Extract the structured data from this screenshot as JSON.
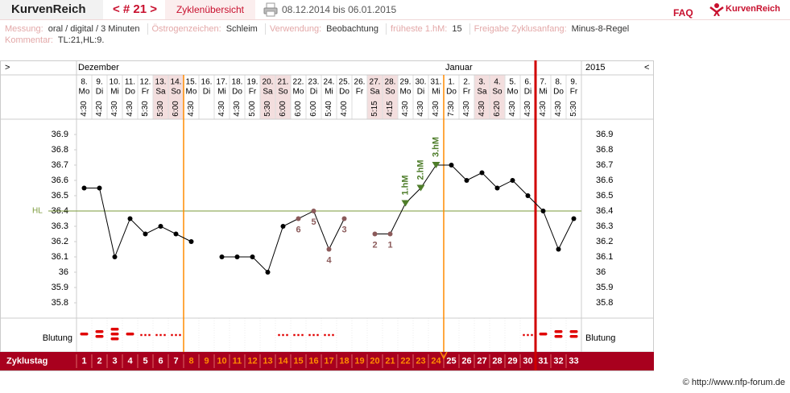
{
  "header": {
    "brand": "KurvenReich",
    "cycle_nav": "< # 21 >",
    "overview": "Zyklenübersicht",
    "date_range": "08.12.2014 bis 06.01.2015",
    "faq": "FAQ",
    "logo": "KurvenReich"
  },
  "info": {
    "fields": [
      {
        "label": "Messung:",
        "value": "oral / digital / 3 Minuten"
      },
      {
        "label": "Östrogenzeichen:",
        "value": "Schleim"
      },
      {
        "label": "Verwendung:",
        "value": "Beobachtung"
      },
      {
        "label": "früheste 1.hM:",
        "value": "15"
      },
      {
        "label": "Freigabe Zyklusanfang:",
        "value": "Minus-8-Regel"
      }
    ],
    "comment": {
      "label": "Kommentar:",
      "value": "TL:21,HL:9."
    }
  },
  "chart_data": {
    "type": "line",
    "nav_prev": ">",
    "nav_next": "<",
    "months": [
      {
        "label": "Dezember",
        "day": 1
      },
      {
        "label": "Januar",
        "day": 25
      }
    ],
    "year_label": "2015",
    "days": [
      "8.",
      "9.",
      "10.",
      "11.",
      "12.",
      "13.",
      "14.",
      "15.",
      "16.",
      "17.",
      "18.",
      "19.",
      "20.",
      "21.",
      "22.",
      "23.",
      "24.",
      "25.",
      "26.",
      "27.",
      "28.",
      "29.",
      "30.",
      "31.",
      "1.",
      "2.",
      "3.",
      "4.",
      "5.",
      "6.",
      "7.",
      "8.",
      "9."
    ],
    "weekdays": [
      "Mo",
      "Di",
      "Mi",
      "Do",
      "Fr",
      "Sa",
      "So",
      "Mo",
      "Di",
      "Mi",
      "Do",
      "Fr",
      "Sa",
      "So",
      "Mo",
      "Di",
      "Mi",
      "Do",
      "Fr",
      "Sa",
      "So",
      "Mo",
      "Di",
      "Mi",
      "Do",
      "Fr",
      "Sa",
      "So",
      "Mo",
      "Di",
      "Mi",
      "Do",
      "Fr"
    ],
    "times": [
      "4:30",
      "4:20",
      "4:30",
      "4:30",
      "5:30",
      "5:30",
      "6:00",
      "4:30",
      null,
      "4:30",
      "4:30",
      "5:00",
      "5:30",
      "6:00",
      "6:00",
      "6:00",
      "5:40",
      "4:00",
      null,
      "5:15",
      "4:15",
      "4:30",
      "4:30",
      "4:30",
      "7:30",
      "4:30",
      "4:30",
      "6:20",
      "4:30",
      "4:30",
      "4:30",
      "4:30",
      "5:30"
    ],
    "values": [
      36.55,
      36.55,
      36.1,
      36.35,
      36.25,
      36.3,
      36.25,
      36.2,
      null,
      36.1,
      36.1,
      36.1,
      36.0,
      36.3,
      36.35,
      36.4,
      36.15,
      36.35,
      null,
      36.25,
      36.25,
      36.45,
      36.55,
      36.7,
      36.7,
      36.6,
      36.65,
      36.55,
      36.6,
      36.5,
      36.4,
      36.15,
      36.35
    ],
    "color": "#000000",
    "count_labels": [
      null,
      null,
      null,
      null,
      null,
      null,
      null,
      null,
      null,
      null,
      null,
      null,
      null,
      null,
      "6",
      "5",
      "4",
      "3",
      null,
      "2",
      "1",
      null,
      null,
      null,
      null,
      null,
      null,
      null,
      null,
      null,
      null,
      null,
      null
    ],
    "excluded_color": "#8b5a5a",
    "hm_labels": [
      null,
      null,
      null,
      null,
      null,
      null,
      null,
      null,
      null,
      null,
      null,
      null,
      null,
      null,
      null,
      null,
      null,
      null,
      null,
      null,
      null,
      "1.hM",
      "2.hM",
      "3.hM",
      null,
      null,
      null,
      null,
      null,
      null,
      null,
      null,
      null
    ],
    "hm_color": "#4e7d2a",
    "ylim": [
      35.7,
      37.0
    ],
    "yticks": [
      35.8,
      35.9,
      36,
      36.1,
      36.2,
      36.3,
      36.4,
      36.5,
      36.6,
      36.7,
      36.8,
      36.9
    ],
    "hl": 36.4,
    "hl_label": "HL",
    "hl_color": "#7a9a3a",
    "bleeding_label": "Blutung",
    "bleeding": [
      2,
      3,
      4,
      2,
      1,
      1,
      1,
      null,
      null,
      null,
      null,
      null,
      null,
      1,
      1,
      1,
      1,
      null,
      null,
      null,
      null,
      null,
      null,
      null,
      null,
      null,
      null,
      null,
      null,
      1,
      2,
      3,
      3
    ],
    "bleeding_color": "#e00000",
    "cycle_day_label": "Zyklustag",
    "cycle_days": [
      1,
      2,
      3,
      4,
      5,
      6,
      7,
      8,
      9,
      10,
      11,
      12,
      13,
      14,
      15,
      16,
      17,
      18,
      19,
      20,
      21,
      22,
      23,
      24,
      25,
      26,
      27,
      28,
      29,
      30,
      31,
      32,
      33
    ],
    "fertile_days": [
      8,
      24
    ],
    "fertile_color": "#ff8c00",
    "cycle_end_day": 30,
    "cycle_end_color": "#d00000"
  },
  "footer": {
    "copyright": "© http://www.nfp-forum.de"
  }
}
